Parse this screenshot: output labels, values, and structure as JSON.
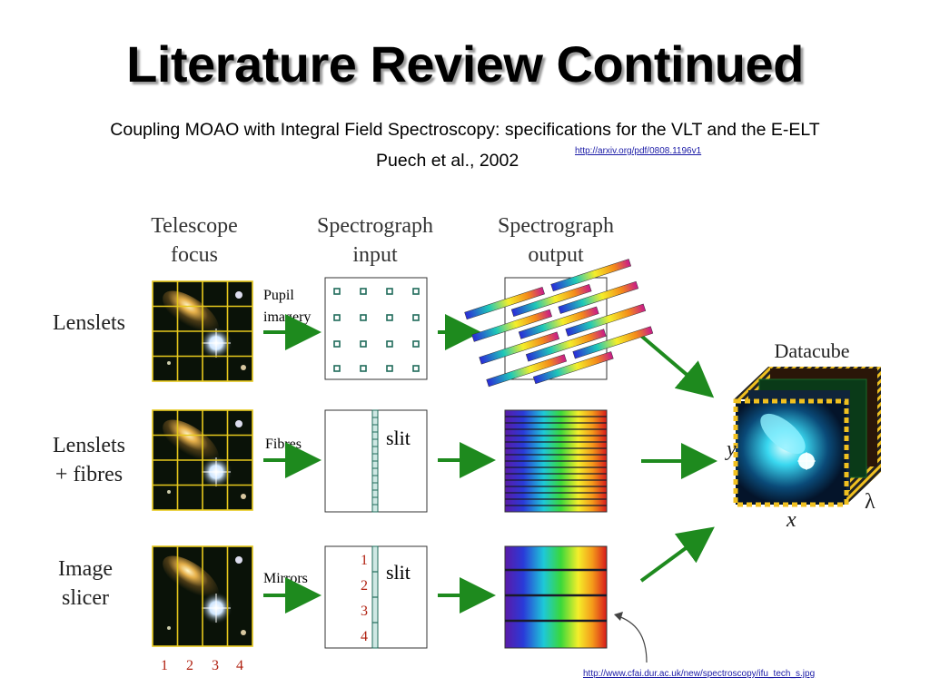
{
  "slide": {
    "title": "Literature Review Continued",
    "subtitle": "Coupling MOAO with Integral Field Spectroscopy: specifications for the VLT and the E-ELT",
    "authors": "Puech et al., 2002",
    "paper_link": "http://arxiv.org/pdf/0808.1196v1",
    "image_link": "http://www.cfai.dur.ac.uk/new/spectroscopy/ifu_tech_s.jpg"
  },
  "diagram": {
    "headers": {
      "telescope_line1": "Telescope",
      "telescope_line2": "focus",
      "input_line1": "Spectrograph",
      "input_line2": "input",
      "output_line1": "Spectrograph",
      "output_line2": "output"
    },
    "rows": [
      {
        "label_line1": "Lenslets",
        "label_line2": "",
        "method_line1": "Pupil",
        "method_line2": "imagery"
      },
      {
        "label_line1": "Lenslets",
        "label_line2": "+ fibres",
        "method_line1": "Fibres",
        "method_line2": "",
        "slit": "slit"
      },
      {
        "label_line1": "Image",
        "label_line2": "slicer",
        "method_line1": "Mirrors",
        "method_line2": "",
        "slit": "slit"
      }
    ],
    "slice_numbers": [
      "1",
      "2",
      "3",
      "4"
    ],
    "datacube": {
      "title": "Datacube",
      "axis_y": "y",
      "axis_x": "x",
      "axis_lambda": "λ"
    },
    "colors": {
      "arrow": "#1e8a1e",
      "galaxy_bg": "#0a1208",
      "grid": "#e6c81c",
      "dot": "#1f6b5a"
    }
  }
}
